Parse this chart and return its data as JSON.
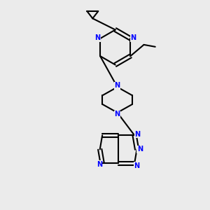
{
  "background_color": "#ebebeb",
  "bond_color": "#000000",
  "nitrogen_color": "#0000ff",
  "line_width": 1.5,
  "figsize": [
    3.0,
    3.0
  ],
  "dpi": 100,
  "xlim": [
    0,
    10
  ],
  "ylim": [
    0,
    10
  ]
}
